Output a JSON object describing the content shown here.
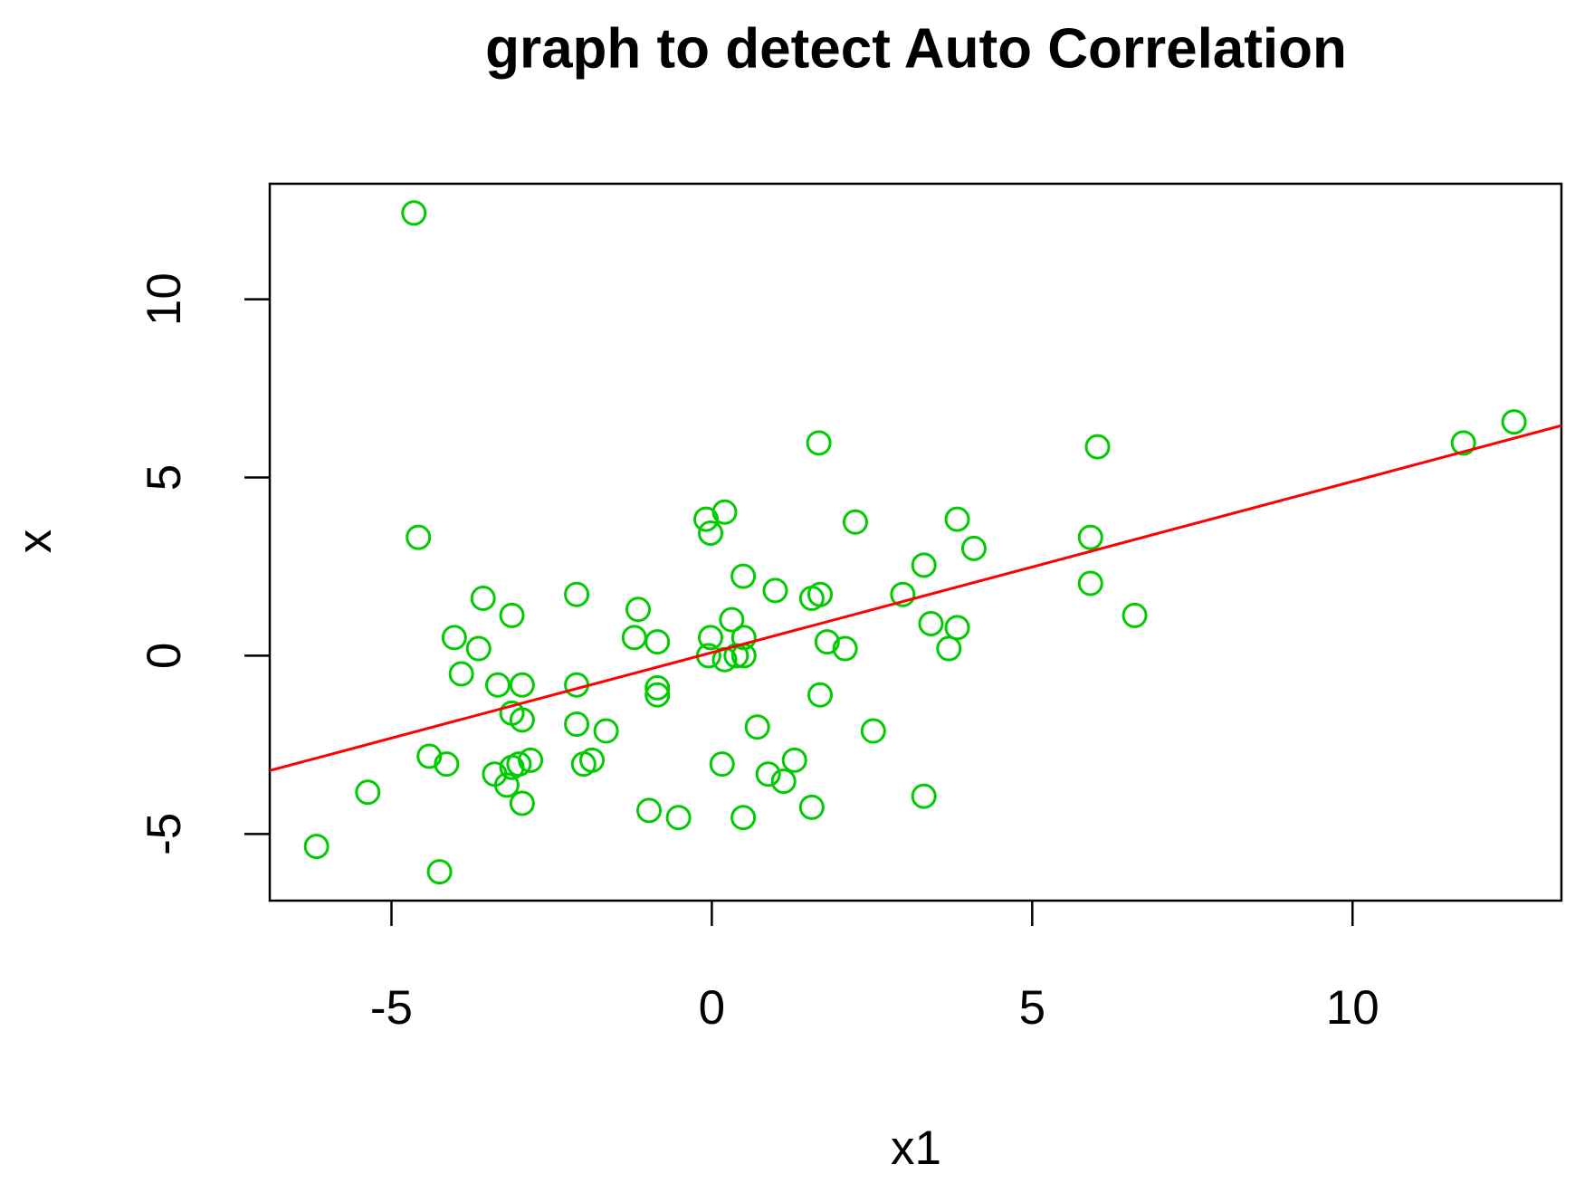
{
  "chart_data": {
    "type": "scatter",
    "title": "graph to detect Auto Correlation",
    "x_label": "x1",
    "y_label": "x",
    "x": [
      -4.65,
      -4.58,
      1.67,
      6.02,
      11.73,
      12.52,
      -0.09,
      0.2,
      -0.02,
      2.24,
      3.83,
      4.09,
      5.91,
      3.31,
      0.49,
      0.99,
      -2.11,
      -3.57,
      1.56,
      1.69,
      2.98,
      5.91,
      6.6,
      -3.12,
      -1.15,
      0.31,
      3.42,
      3.83,
      -4.02,
      -3.64,
      -1.21,
      -0.85,
      -0.02,
      0.5,
      1.8,
      2.08,
      3.7,
      -0.05,
      0.2,
      0.38,
      0.5,
      -3.91,
      -3.34,
      -2.96,
      -2.11,
      -0.85,
      -0.85,
      1.69,
      -3.12,
      -2.96,
      -2.11,
      -1.65,
      0.71,
      2.52,
      -4.41,
      -4.14,
      -2.83,
      -3.01,
      -3.12,
      -1.87,
      -2.0,
      0.16,
      1.29,
      0.88,
      1.12,
      -3.39,
      -3.2,
      -2.96,
      -5.37,
      3.31,
      -0.98,
      -0.52,
      0.49,
      1.56,
      -6.17,
      -4.25
    ],
    "values": [
      12.42,
      3.32,
      5.97,
      5.86,
      5.97,
      6.56,
      3.83,
      4.03,
      3.44,
      3.75,
      3.83,
      3.01,
      3.32,
      2.54,
      2.23,
      1.83,
      1.72,
      1.61,
      1.61,
      1.72,
      1.72,
      2.03,
      1.13,
      1.13,
      1.3,
      1.01,
      0.9,
      0.79,
      0.51,
      0.2,
      0.51,
      0.39,
      0.51,
      0.51,
      0.39,
      0.2,
      0.2,
      0,
      -0.11,
      0,
      0,
      -0.51,
      -0.82,
      -0.82,
      -0.82,
      -0.9,
      -1.1,
      -1.1,
      -1.61,
      -1.8,
      -1.92,
      -2.11,
      -2.0,
      -2.11,
      -2.82,
      -3.04,
      -2.93,
      -3.04,
      -3.13,
      -2.93,
      -3.04,
      -3.04,
      -2.93,
      -3.32,
      -3.52,
      -3.32,
      -3.63,
      -4.14,
      -3.83,
      -3.94,
      -4.34,
      -4.54,
      -4.54,
      -4.25,
      -5.35,
      -6.06
    ],
    "color": "#00cc00",
    "fit_line": {
      "intercept": 0.09,
      "slope": 0.48,
      "color": "#ff0000"
    },
    "xlim": [
      -6.9,
      13.26
    ],
    "ylim": [
      -6.87,
      13.24
    ],
    "xticks": [
      -5,
      0,
      5,
      10
    ],
    "yticks": [
      -5,
      0,
      5,
      10
    ]
  }
}
